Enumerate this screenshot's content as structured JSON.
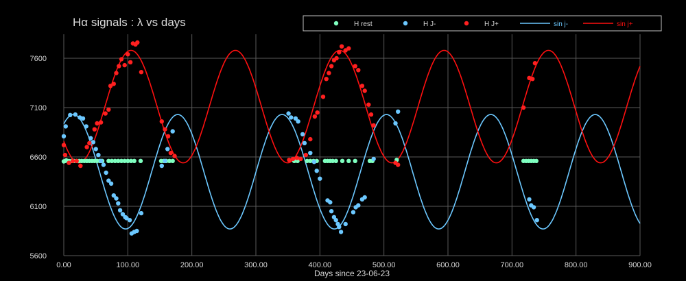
{
  "chart_data": {
    "type": "scatter",
    "title": "Hα signals : λ vs days",
    "xlabel": "Days since 23-06-23",
    "ylabel": "",
    "xlim": [
      0,
      900
    ],
    "ylim": [
      5600,
      7850
    ],
    "x_ticks": [
      "0.00",
      "100.00",
      "200.00",
      "300.00",
      "400.00",
      "500.00",
      "600.00",
      "700.00",
      "800.00",
      "900.00"
    ],
    "x_tick_values": [
      0,
      100,
      200,
      300,
      400,
      500,
      600,
      700,
      800,
      900
    ],
    "y_ticks": [
      "5600",
      "6100",
      "6600",
      "7100",
      "7600"
    ],
    "y_tick_values": [
      5600,
      6100,
      6600,
      7100,
      7600
    ],
    "grid": true,
    "legend_position": "top-right",
    "background": "#000000",
    "series": [
      {
        "name": "H rest",
        "kind": "points",
        "color": "#7fffc0",
        "points": [
          [
            0,
            6555
          ],
          [
            2,
            6560
          ],
          [
            4,
            6565
          ],
          [
            8,
            6560
          ],
          [
            12,
            6560
          ],
          [
            16,
            6560
          ],
          [
            20,
            6560
          ],
          [
            24,
            6560
          ],
          [
            28,
            6560
          ],
          [
            32,
            6560
          ],
          [
            36,
            6560
          ],
          [
            40,
            6560
          ],
          [
            44,
            6560
          ],
          [
            48,
            6560
          ],
          [
            52,
            6560
          ],
          [
            56,
            6560
          ],
          [
            60,
            6560
          ],
          [
            70,
            6560
          ],
          [
            75,
            6560
          ],
          [
            80,
            6560
          ],
          [
            85,
            6560
          ],
          [
            90,
            6560
          ],
          [
            95,
            6560
          ],
          [
            100,
            6560
          ],
          [
            105,
            6560
          ],
          [
            110,
            6560
          ],
          [
            120,
            6560
          ],
          [
            152,
            6560
          ],
          [
            156,
            6560
          ],
          [
            160,
            6560
          ],
          [
            165,
            6560
          ],
          [
            170,
            6560
          ],
          [
            360,
            6560
          ],
          [
            365,
            6560
          ],
          [
            380,
            6560
          ],
          [
            385,
            6560
          ],
          [
            390,
            6560
          ],
          [
            395,
            6560
          ],
          [
            408,
            6560
          ],
          [
            412,
            6560
          ],
          [
            416,
            6560
          ],
          [
            420,
            6560
          ],
          [
            425,
            6560
          ],
          [
            435,
            6560
          ],
          [
            445,
            6560
          ],
          [
            455,
            6560
          ],
          [
            478,
            6560
          ],
          [
            482,
            6560
          ],
          [
            520,
            6570
          ],
          [
            718,
            6560
          ],
          [
            722,
            6560
          ],
          [
            726,
            6560
          ],
          [
            730,
            6560
          ],
          [
            734,
            6560
          ],
          [
            738,
            6560
          ]
        ]
      },
      {
        "name": "H J-",
        "kind": "points",
        "color": "#6cc8ff",
        "points": [
          [
            0,
            6810
          ],
          [
            3,
            6910
          ],
          [
            10,
            7025
          ],
          [
            18,
            7030
          ],
          [
            25,
            7000
          ],
          [
            30,
            6990
          ],
          [
            35,
            6910
          ],
          [
            42,
            6790
          ],
          [
            46,
            6750
          ],
          [
            50,
            6680
          ],
          [
            54,
            6620
          ],
          [
            58,
            6560
          ],
          [
            62,
            6520
          ],
          [
            66,
            6440
          ],
          [
            70,
            6360
          ],
          [
            74,
            6330
          ],
          [
            78,
            6210
          ],
          [
            82,
            6180
          ],
          [
            85,
            6130
          ],
          [
            88,
            6060
          ],
          [
            92,
            6020
          ],
          [
            96,
            5990
          ],
          [
            98,
            5980
          ],
          [
            103,
            5960
          ],
          [
            106,
            5825
          ],
          [
            110,
            5840
          ],
          [
            114,
            5850
          ],
          [
            121,
            6030
          ],
          [
            153,
            6510
          ],
          [
            158,
            6560
          ],
          [
            162,
            6680
          ],
          [
            170,
            6860
          ],
          [
            351,
            7040
          ],
          [
            355,
            7000
          ],
          [
            362,
            6990
          ],
          [
            366,
            6960
          ],
          [
            373,
            6830
          ],
          [
            376,
            6740
          ],
          [
            385,
            6640
          ],
          [
            391,
            6550
          ],
          [
            395,
            6460
          ],
          [
            400,
            6380
          ],
          [
            412,
            6160
          ],
          [
            416,
            6140
          ],
          [
            418,
            6050
          ],
          [
            422,
            5990
          ],
          [
            425,
            5960
          ],
          [
            428,
            5920
          ],
          [
            430,
            5890
          ],
          [
            433,
            5840
          ],
          [
            440,
            5920
          ],
          [
            452,
            6040
          ],
          [
            456,
            6090
          ],
          [
            460,
            6110
          ],
          [
            466,
            6170
          ],
          [
            470,
            6190
          ],
          [
            484,
            6580
          ],
          [
            518,
            6940
          ],
          [
            522,
            7060
          ],
          [
            727,
            6170
          ],
          [
            730,
            6110
          ],
          [
            734,
            6090
          ],
          [
            739,
            5960
          ]
        ]
      },
      {
        "name": "H J+",
        "kind": "points",
        "color": "#ff2020",
        "points": [
          [
            0,
            6720
          ],
          [
            2,
            6620
          ],
          [
            8,
            6540
          ],
          [
            14,
            6560
          ],
          [
            20,
            6560
          ],
          [
            26,
            6510
          ],
          [
            36,
            6700
          ],
          [
            40,
            6740
          ],
          [
            48,
            6880
          ],
          [
            52,
            6940
          ],
          [
            58,
            6950
          ],
          [
            65,
            7040
          ],
          [
            70,
            7080
          ],
          [
            73,
            7320
          ],
          [
            78,
            7340
          ],
          [
            82,
            7450
          ],
          [
            86,
            7520
          ],
          [
            90,
            7590
          ],
          [
            95,
            7530
          ],
          [
            100,
            7640
          ],
          [
            104,
            7560
          ],
          [
            108,
            7750
          ],
          [
            112,
            7740
          ],
          [
            115,
            7760
          ],
          [
            121,
            7460
          ],
          [
            153,
            6960
          ],
          [
            158,
            6880
          ],
          [
            163,
            6810
          ],
          [
            167,
            6640
          ],
          [
            173,
            6610
          ],
          [
            352,
            6570
          ],
          [
            358,
            6580
          ],
          [
            364,
            6590
          ],
          [
            370,
            6580
          ],
          [
            378,
            6620
          ],
          [
            385,
            6780
          ],
          [
            392,
            7010
          ],
          [
            396,
            7050
          ],
          [
            405,
            7210
          ],
          [
            410,
            7390
          ],
          [
            414,
            7450
          ],
          [
            418,
            7520
          ],
          [
            422,
            7580
          ],
          [
            426,
            7600
          ],
          [
            430,
            7660
          ],
          [
            434,
            7720
          ],
          [
            440,
            7680
          ],
          [
            445,
            7700
          ],
          [
            455,
            7520
          ],
          [
            460,
            7480
          ],
          [
            466,
            7320
          ],
          [
            470,
            7270
          ],
          [
            476,
            7130
          ],
          [
            480,
            7030
          ],
          [
            484,
            6920
          ],
          [
            518,
            6540
          ],
          [
            522,
            6520
          ],
          [
            718,
            7100
          ],
          [
            727,
            7400
          ],
          [
            732,
            7390
          ],
          [
            736,
            7550
          ]
        ]
      },
      {
        "name": "sin j-",
        "kind": "line",
        "color": "#6cc8ff",
        "function": {
          "mean": 6450,
          "amplitude": 580,
          "period": 163,
          "phase_day": 15,
          "from": 0,
          "to": 900
        }
      },
      {
        "name": "sin j+",
        "kind": "line",
        "color": "#ff1010",
        "function": {
          "mean": 7110,
          "amplitude": 570,
          "period": 163,
          "phase_day": 105,
          "from": 0,
          "to": 900
        }
      }
    ]
  }
}
